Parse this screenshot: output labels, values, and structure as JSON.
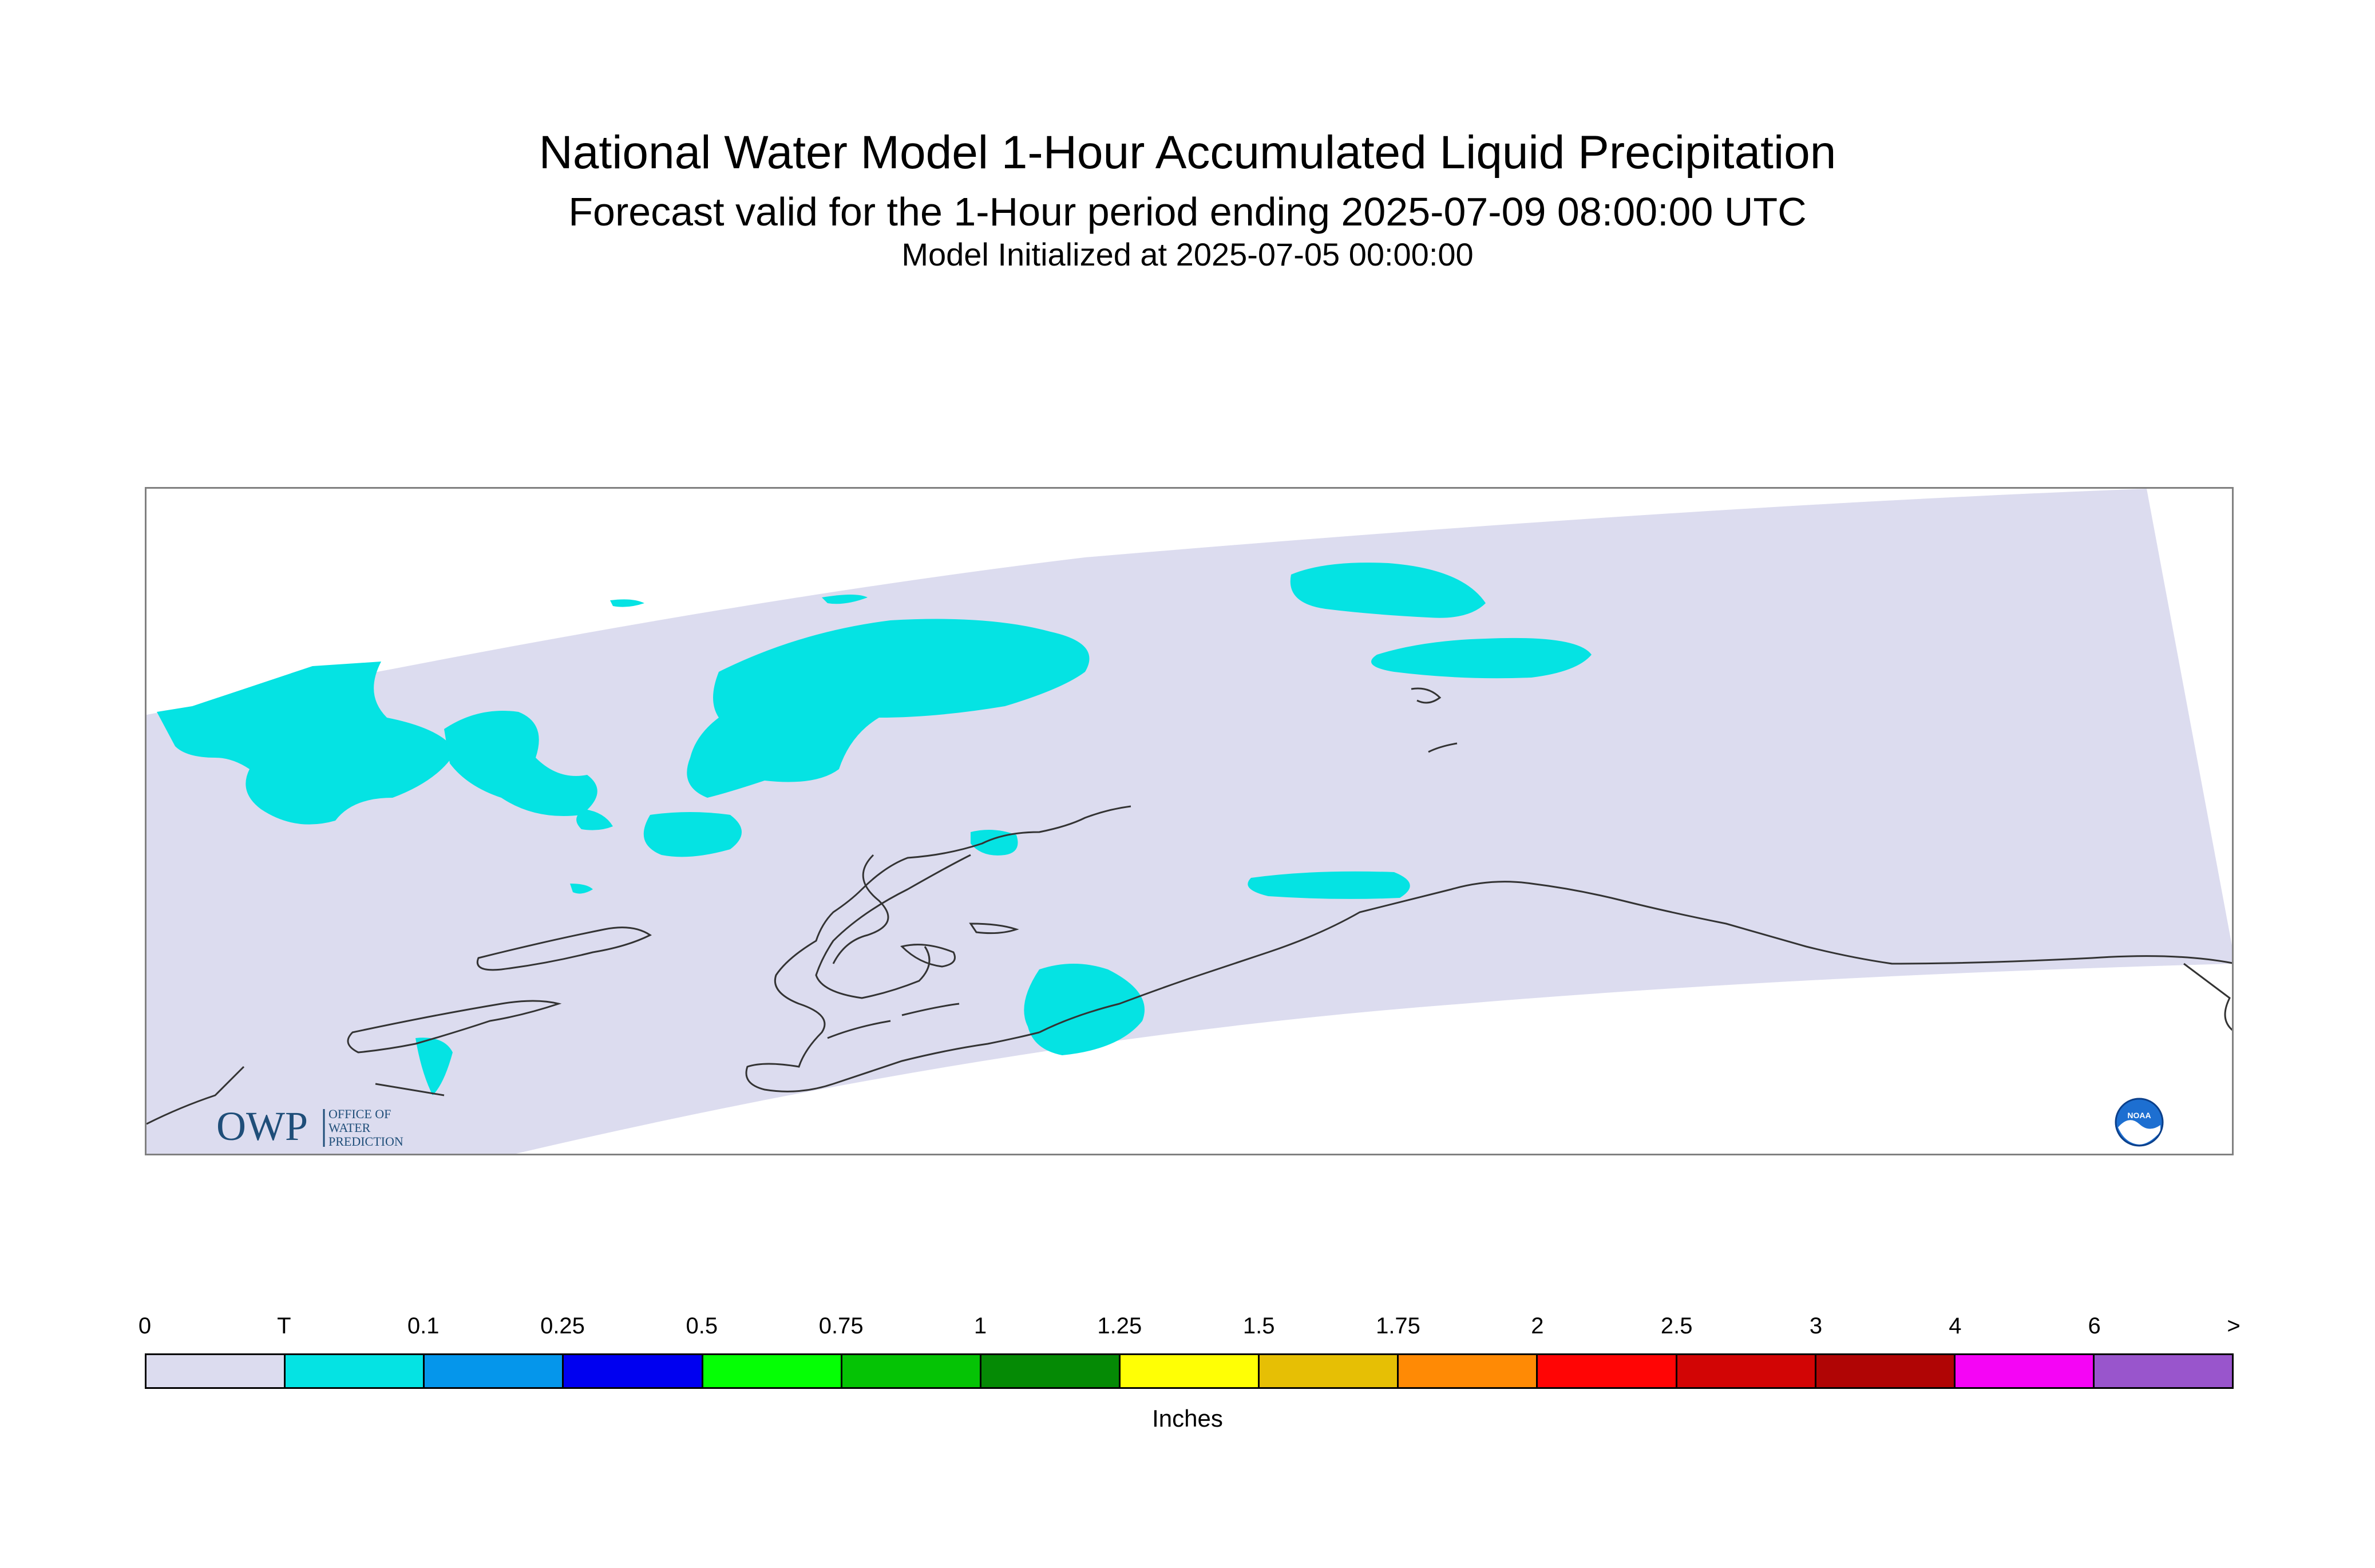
{
  "title": {
    "main": "National Water Model 1-Hour Accumulated Liquid Precipitation",
    "sub": "Forecast valid for the 1-Hour period ending 2025-07-09 08:00:00 UTC",
    "init": "Model Initialized at 2025-07-05 00:00:00"
  },
  "colors": {
    "domain_fill": "#dcdcef",
    "coastline": "#333333",
    "precip_trace": "#05e3e3",
    "frame": "#808080"
  },
  "colorbar": {
    "units": "Inches",
    "labels": [
      "0",
      "T",
      "0.1",
      "0.25",
      "0.5",
      "0.75",
      "1",
      "1.25",
      "1.5",
      "1.75",
      "2",
      "2.5",
      "3",
      "4",
      "6",
      ">"
    ],
    "colors": [
      "#dcdcef",
      "#05e3e3",
      "#0596eb",
      "#0000f0",
      "#05ff05",
      "#05c305",
      "#058a05",
      "#ffff05",
      "#e6bf05",
      "#ff8a05",
      "#ff0505",
      "#d20505",
      "#b00505",
      "#f505f5",
      "#9955cc"
    ]
  },
  "logos": {
    "owp_mark": "OWP",
    "owp_lines": [
      "OFFICE OF",
      "WATER",
      "PREDICTION"
    ],
    "noaa": "NOAA"
  }
}
